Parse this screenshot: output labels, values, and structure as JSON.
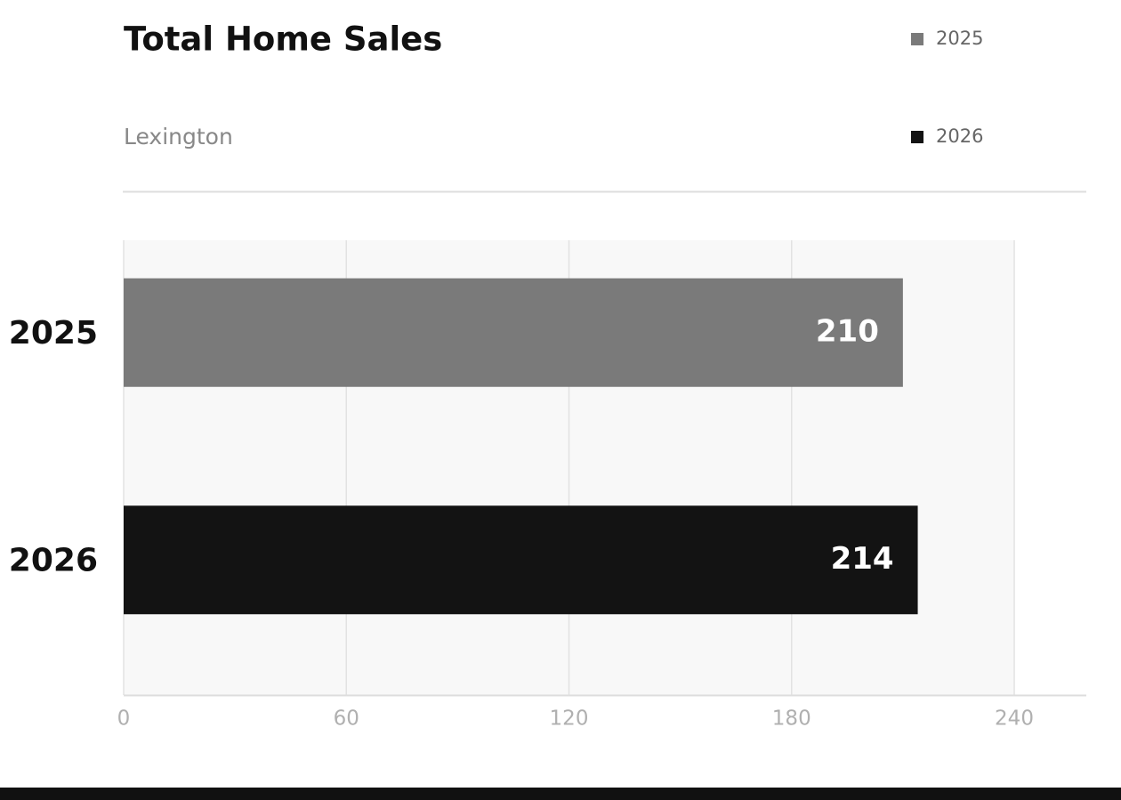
{
  "chart_data": {
    "type": "hbar",
    "title": "Total Home Sales",
    "subtitle": "Lexington",
    "categories": [
      "2025",
      "2026"
    ],
    "values": [
      210,
      214
    ],
    "colors": [
      "#7a7a7a",
      "#131313"
    ],
    "xlim": [
      0,
      240
    ],
    "xticks": [
      0,
      60,
      120,
      180,
      240
    ],
    "grid": true,
    "legend": "top-right"
  }
}
